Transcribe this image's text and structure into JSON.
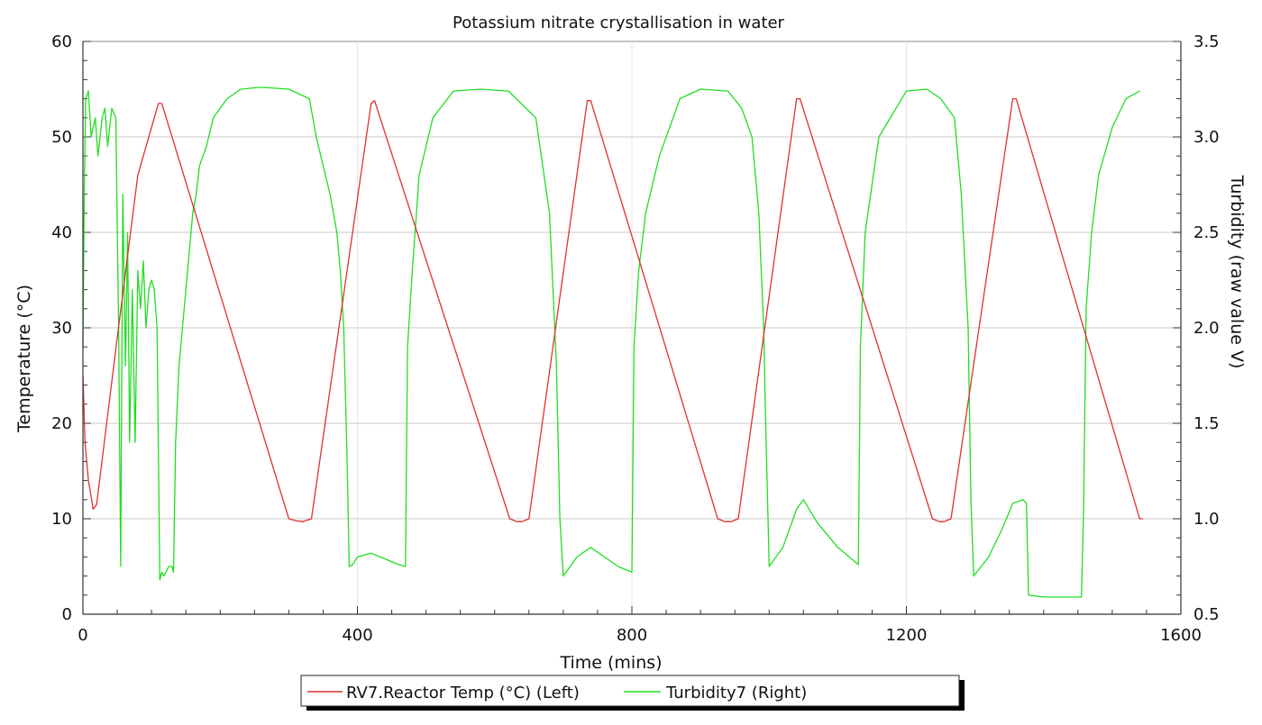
{
  "chart_data": {
    "type": "line",
    "title": "Potassium nitrate crystallisation in water",
    "xlabel": "Time (mins)",
    "ylabel_left": "Temperature (°C)",
    "ylabel_right": "Turbidity (raw value V)",
    "xlim": [
      0,
      1600
    ],
    "ylim_left": [
      0,
      60
    ],
    "ylim_right": [
      0.5,
      3.5
    ],
    "x_ticks": [
      "0",
      "400",
      "800",
      "1200",
      "1600"
    ],
    "y_left_ticks": [
      "0",
      "10",
      "20",
      "30",
      "40",
      "50",
      "60"
    ],
    "y_right_ticks": [
      "0.5",
      "1.0",
      "1.5",
      "2.0",
      "2.5",
      "3.0",
      "3.5"
    ],
    "grid": true,
    "legend_position": "bottom-center",
    "series": [
      {
        "name": "RV7.Reactor Temp (°C) (Left)",
        "axis": "left",
        "color": "#e03030",
        "x": [
          0,
          3,
          8,
          15,
          20,
          50,
          80,
          110,
          115,
          300,
          310,
          320,
          333,
          420,
          425,
          622,
          632,
          640,
          650,
          735,
          740,
          925,
          935,
          945,
          955,
          1040,
          1045,
          1238,
          1248,
          1255,
          1265,
          1355,
          1360,
          1540,
          1545
        ],
        "values": [
          25,
          18,
          14,
          11,
          11.5,
          29,
          46,
          53.5,
          53.5,
          10,
          9.8,
          9.7,
          10,
          53.5,
          53.8,
          10,
          9.7,
          9.7,
          10,
          53.8,
          53.8,
          10,
          9.7,
          9.7,
          10,
          54,
          54,
          10,
          9.7,
          9.7,
          10,
          54,
          54,
          10,
          10
        ]
      },
      {
        "name": "Turbidity7 (Right)",
        "axis": "right",
        "color": "#22dd22",
        "x": [
          0,
          2,
          4,
          8,
          12,
          18,
          22,
          28,
          32,
          36,
          42,
          48,
          52,
          55,
          58,
          62,
          65,
          68,
          72,
          76,
          80,
          84,
          88,
          92,
          96,
          100,
          104,
          108,
          112,
          115,
          118,
          125,
          130,
          132,
          135,
          140,
          145,
          150,
          155,
          160,
          165,
          170,
          180,
          190,
          210,
          230,
          260,
          300,
          330,
          340,
          360,
          370,
          375,
          380,
          385,
          388,
          393,
          400,
          420,
          440,
          460,
          470,
          473,
          480,
          490,
          510,
          540,
          580,
          620,
          660,
          680,
          690,
          695,
          700,
          720,
          740,
          760,
          780,
          800,
          803,
          810,
          820,
          840,
          870,
          900,
          940,
          960,
          975,
          985,
          992,
          995,
          1000,
          1020,
          1040,
          1050,
          1070,
          1100,
          1130,
          1133,
          1140,
          1160,
          1200,
          1230,
          1250,
          1270,
          1280,
          1290,
          1294,
          1298,
          1320,
          1340,
          1355,
          1370,
          1375,
          1378,
          1400,
          1430,
          1455,
          1458,
          1462,
          1470,
          1480,
          1500,
          1520,
          1540
        ],
        "values": [
          1.9,
          2.7,
          3.2,
          3.24,
          3.0,
          3.1,
          2.9,
          3.1,
          3.15,
          2.95,
          3.15,
          3.1,
          2.0,
          0.75,
          2.7,
          1.8,
          2.5,
          1.4,
          2.2,
          1.4,
          2.3,
          2.1,
          2.35,
          2.0,
          2.2,
          2.25,
          2.2,
          2.0,
          0.68,
          0.72,
          0.7,
          0.75,
          0.75,
          0.72,
          1.4,
          1.8,
          2.0,
          2.2,
          2.4,
          2.6,
          2.7,
          2.85,
          2.95,
          3.1,
          3.2,
          3.25,
          3.26,
          3.25,
          3.2,
          3.0,
          2.7,
          2.5,
          2.3,
          2.0,
          1.3,
          0.75,
          0.76,
          0.8,
          0.82,
          0.79,
          0.76,
          0.75,
          1.9,
          2.3,
          2.8,
          3.1,
          3.24,
          3.25,
          3.24,
          3.1,
          2.6,
          1.8,
          1.0,
          0.7,
          0.8,
          0.85,
          0.8,
          0.75,
          0.72,
          1.9,
          2.3,
          2.6,
          2.9,
          3.2,
          3.25,
          3.24,
          3.15,
          3.0,
          2.6,
          2.0,
          1.5,
          0.75,
          0.85,
          1.05,
          1.1,
          0.98,
          0.85,
          0.76,
          1.9,
          2.5,
          3.0,
          3.24,
          3.25,
          3.2,
          3.1,
          2.7,
          2.0,
          1.1,
          0.7,
          0.8,
          0.95,
          1.08,
          1.1,
          1.08,
          0.6,
          0.59,
          0.59,
          0.59,
          1.0,
          2.1,
          2.5,
          2.8,
          3.05,
          3.2,
          3.24
        ]
      }
    ]
  }
}
